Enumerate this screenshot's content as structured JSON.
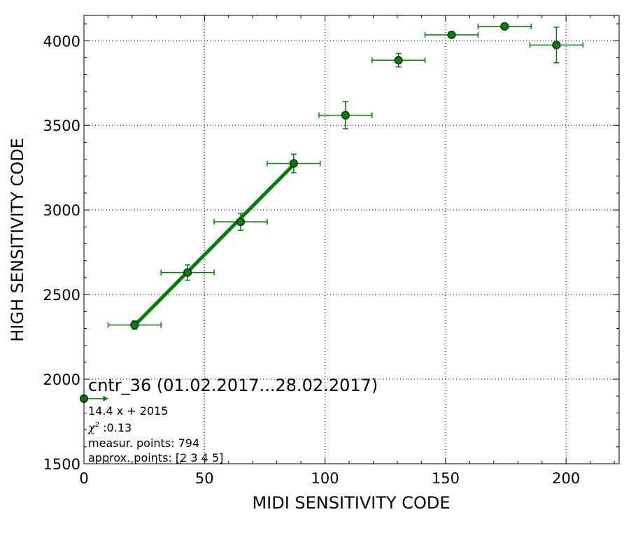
{
  "chart_data": {
    "type": "scatter",
    "title": "cntr_36 (01.02.2017...28.02.2017)",
    "xlabel": "MIDI SENSITIVITY CODE",
    "ylabel": "HIGH SENSITIVITY CODE",
    "xlim": [
      0,
      222
    ],
    "ylim": [
      1500,
      4150
    ],
    "xticks": [
      0,
      50,
      100,
      150,
      200
    ],
    "xtick_labels": [
      "0",
      "50",
      "100",
      "150",
      "200"
    ],
    "yticks": [
      1500,
      2000,
      2500,
      3000,
      3500,
      4000
    ],
    "ytick_labels": [
      "1500",
      "2000",
      "2500",
      "3000",
      "3500",
      "4000"
    ],
    "grid": true,
    "colors": {
      "points": "#007f00",
      "fit": "#007f00",
      "marker_edge": "#000000"
    },
    "series": [
      {
        "points": [
          {
            "x": 0,
            "y": 1885,
            "xerr": 0,
            "xerr_plus": 10,
            "yerr": 0
          },
          {
            "x": 21,
            "y": 2320,
            "xerr": 11,
            "yerr": 25
          },
          {
            "x": 43,
            "y": 2630,
            "xerr": 11,
            "yerr": 45
          },
          {
            "x": 65,
            "y": 2930,
            "xerr": 11,
            "yerr": 50
          },
          {
            "x": 87,
            "y": 3275,
            "xerr": 11,
            "yerr": 55
          },
          {
            "x": 108.5,
            "y": 3560,
            "xerr": 11,
            "yerr": 80
          },
          {
            "x": 130.5,
            "y": 3885,
            "xerr": 11,
            "yerr": 40
          },
          {
            "x": 152.5,
            "y": 4035,
            "xerr": 11,
            "yerr": 0
          },
          {
            "x": 174.5,
            "y": 4085,
            "xerr": 11,
            "yerr": 0
          },
          {
            "x": 196,
            "y": 3975,
            "xerr": 11,
            "yerr": 105
          }
        ]
      }
    ],
    "fit_line": {
      "equation": "14.4 x + 2015",
      "x_from": 21,
      "x_to": 87
    },
    "annotations": {
      "equation": "14.4 x + 2015",
      "chi2_label": "χ",
      "chi2_sup": "2",
      "chi2_value": " :0.13",
      "measur_points": "measur. points: 794",
      "approx_points": "approx. points: [2 3 4 5]"
    }
  }
}
